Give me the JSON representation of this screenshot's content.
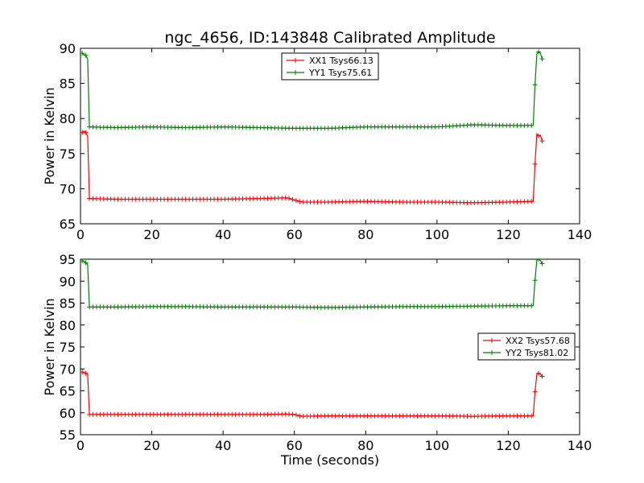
{
  "title": "ngc_4656, ID:143848 Calibrated Amplitude",
  "chart_data": [
    {
      "type": "line",
      "xlabel": "",
      "ylabel": "Power in Kelvin",
      "xlim": [
        0,
        140
      ],
      "ylim": [
        65,
        90
      ],
      "xticks": [
        "0",
        "20",
        "40",
        "60",
        "80",
        "100",
        "120",
        "140"
      ],
      "yticks": [
        "65",
        "70",
        "75",
        "80",
        "85",
        "90"
      ],
      "xtick_values": [
        0,
        20,
        40,
        60,
        80,
        100,
        120,
        140
      ],
      "ytick_values": [
        65,
        70,
        75,
        80,
        85,
        90
      ],
      "legend_position": "top-center",
      "series": [
        {
          "name": "XX1 Tsys66.13",
          "color": "#ff0000",
          "segments": [
            {
              "x": [
                0.5,
                1.0,
                1.5,
                2.0
              ],
              "y": [
                78.0,
                78.2,
                78.0,
                77.5
              ]
            },
            {
              "x": [
                2.5,
                10,
                20,
                30,
                40,
                50,
                58,
                60,
                62,
                70,
                80,
                90,
                100,
                110,
                120,
                127.0
              ],
              "y": [
                68.6,
                68.5,
                68.5,
                68.5,
                68.5,
                68.6,
                68.7,
                68.4,
                68.1,
                68.1,
                68.2,
                68.1,
                68.1,
                68.0,
                68.1,
                68.2
              ]
            },
            {
              "x": [
                127.5,
                128.0,
                128.5,
                129.0,
                129.5
              ],
              "y": [
                73.5,
                77.8,
                77.5,
                77.6,
                76.8
              ]
            }
          ]
        },
        {
          "name": "YY1 Tsys75.61",
          "color": "#008000",
          "segments": [
            {
              "x": [
                0.5,
                1.0,
                1.5,
                2.0
              ],
              "y": [
                89.3,
                89.1,
                89.0,
                88.5
              ]
            },
            {
              "x": [
                2.5,
                10,
                20,
                30,
                40,
                50,
                60,
                70,
                80,
                90,
                100,
                110,
                120,
                127.0
              ],
              "y": [
                78.8,
                78.7,
                78.8,
                78.7,
                78.8,
                78.7,
                78.6,
                78.6,
                78.8,
                78.8,
                78.8,
                79.1,
                79.0,
                79.0
              ]
            },
            {
              "x": [
                127.5,
                128.0,
                128.5,
                129.0,
                129.5
              ],
              "y": [
                84.8,
                89.2,
                89.5,
                89.3,
                88.5
              ]
            }
          ]
        }
      ]
    },
    {
      "type": "line",
      "xlabel": "Time (seconds)",
      "ylabel": "Power in Kelvin",
      "xlim": [
        0,
        140
      ],
      "ylim": [
        55,
        95
      ],
      "xticks": [
        "0",
        "20",
        "40",
        "60",
        "80",
        "100",
        "120",
        "140"
      ],
      "yticks": [
        "55",
        "60",
        "65",
        "70",
        "75",
        "80",
        "85",
        "90",
        "95"
      ],
      "xtick_values": [
        0,
        20,
        40,
        60,
        80,
        100,
        120,
        140
      ],
      "ytick_values": [
        55,
        60,
        65,
        70,
        75,
        80,
        85,
        90,
        95
      ],
      "legend_position": "center-right",
      "series": [
        {
          "name": "XX2 Tsys57.68",
          "color": "#ff0000",
          "segments": [
            {
              "x": [
                0.5,
                1.0,
                1.5,
                2.0
              ],
              "y": [
                69.3,
                69.2,
                69.0,
                68.8
              ]
            },
            {
              "x": [
                2.5,
                10,
                20,
                30,
                40,
                50,
                58,
                60,
                62,
                70,
                80,
                90,
                100,
                110,
                120,
                127.0
              ],
              "y": [
                59.6,
                59.6,
                59.6,
                59.6,
                59.6,
                59.6,
                59.7,
                59.6,
                59.2,
                59.3,
                59.3,
                59.3,
                59.3,
                59.2,
                59.3,
                59.3
              ]
            },
            {
              "x": [
                127.5,
                128.0,
                128.5,
                129.0,
                129.5
              ],
              "y": [
                64.8,
                68.8,
                69.0,
                68.8,
                68.3
              ]
            }
          ]
        },
        {
          "name": "YY2 Tsys81.02",
          "color": "#008000",
          "segments": [
            {
              "x": [
                0.5,
                1.0,
                1.5,
                2.0
              ],
              "y": [
                94.6,
                94.5,
                94.2,
                93.8
              ]
            },
            {
              "x": [
                2.5,
                10,
                20,
                30,
                40,
                50,
                60,
                70,
                80,
                90,
                100,
                110,
                120,
                127.0
              ],
              "y": [
                84.1,
                84.1,
                84.2,
                84.2,
                84.1,
                84.1,
                84.1,
                84.0,
                84.1,
                84.2,
                84.2,
                84.3,
                84.4,
                84.4
              ]
            },
            {
              "x": [
                127.5,
                128.0,
                128.5,
                129.0,
                129.5
              ],
              "y": [
                90.2,
                94.8,
                95.0,
                94.7,
                94.0
              ]
            }
          ]
        }
      ]
    }
  ]
}
